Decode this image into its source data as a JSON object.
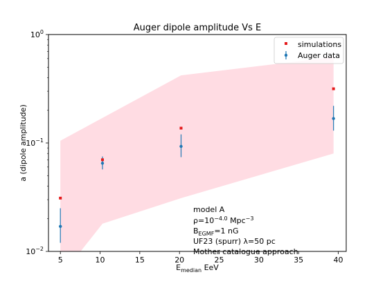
{
  "chart_data": {
    "type": "scatter",
    "title": "Auger dipole amplitude Vs E",
    "xlabel": {
      "main": "E",
      "sub": "median",
      "rest": " EeV"
    },
    "ylabel": "a (dipole amplitude)",
    "xlim": [
      3.5,
      41
    ],
    "ylim": [
      0.01,
      1
    ],
    "yscale": "log",
    "x_ticks": [
      5,
      10,
      15,
      20,
      25,
      30,
      35,
      40
    ],
    "y_ticks": [
      {
        "value": 0.01,
        "base": "10",
        "exp": "−2"
      },
      {
        "value": 0.1,
        "base": "10",
        "exp": "−1"
      },
      {
        "value": 1,
        "base": "10",
        "exp": "0"
      }
    ],
    "band": {
      "color": "#ffdce3",
      "x": [
        5,
        10.3,
        20.2,
        39.4
      ],
      "upper": [
        0.105,
        0.17,
        0.42,
        0.62
      ],
      "lower": [
        0.0058,
        0.018,
        0.031,
        0.08
      ]
    },
    "series": [
      {
        "name": "simulations",
        "marker": "square",
        "color": "#e41a1c",
        "x": [
          5,
          10.3,
          20.2,
          39.4
        ],
        "y": [
          0.031,
          0.07,
          0.137,
          0.316
        ]
      },
      {
        "name": "Auger data",
        "marker": "circle-errorbar",
        "color": "#1f77b4",
        "x": [
          5,
          10.3,
          20.2,
          39.4
        ],
        "y": [
          0.017,
          0.065,
          0.093,
          0.168
        ],
        "y_low": [
          0.012,
          0.057,
          0.074,
          0.13
        ],
        "y_high": [
          0.025,
          0.075,
          0.12,
          0.22
        ]
      }
    ],
    "legend_position": "top-right",
    "annotations": {
      "line1": "model A",
      "line2": {
        "pre": "ρ=10",
        "sup": "−4.0",
        "post": " Mpc",
        "sup2": "−3"
      },
      "line3": {
        "pre": "B",
        "sub": "EGMF",
        "post": "=1 nG"
      },
      "line4": "UF23 (spurr) λ=50 pc",
      "line5": "Mother catalogue approach"
    }
  }
}
